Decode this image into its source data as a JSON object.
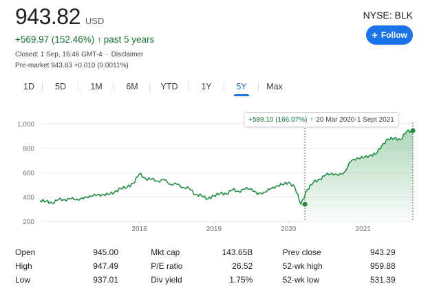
{
  "quote": {
    "price": "943.82",
    "currency": "USD",
    "change": "+569.97 (152.46%)",
    "change_arrow": "↑",
    "period": "past 5 years",
    "closed_prefix": "Closed:",
    "closed_time": "1 Sep, 16:46 GMT-4",
    "disclaimer": "Disclaimer",
    "premarket": "Pre-market 943.83 +0.010 (0.0011%)",
    "exchange": "NYSE: BLK"
  },
  "follow_button": {
    "plus": "+",
    "label": "Follow"
  },
  "tabs": [
    {
      "label": "1D"
    },
    {
      "label": "5D"
    },
    {
      "label": "1M"
    },
    {
      "label": "6M"
    },
    {
      "label": "YTD"
    },
    {
      "label": "1Y"
    },
    {
      "label": "5Y",
      "active": true
    },
    {
      "label": "Max"
    }
  ],
  "tooltip": {
    "change": "+589.10 (166.07%)",
    "arrow": "↑",
    "range": "20 Mar 2020-1 Sept 2021"
  },
  "colors": {
    "accent": "#1a73e8",
    "positive": "#137333",
    "line": "#1e8e3e"
  },
  "chart_data": {
    "type": "line",
    "title": "",
    "xlabel": "",
    "ylabel": "",
    "ylim": [
      200,
      1000
    ],
    "yticks": [
      "200",
      "400",
      "600",
      "800",
      "1,000"
    ],
    "xticks": [
      "2018",
      "2019",
      "2020",
      "2021"
    ],
    "x_range": [
      "2016-09",
      "2021-09"
    ],
    "grid": "horizontal",
    "highlight_start": "2020-03-20",
    "highlight_end": "2021-09-01",
    "series": [
      {
        "values": [
          {
            "x": "2016-09",
            "y": 370
          },
          {
            "x": "2016-10",
            "y": 365
          },
          {
            "x": "2016-11",
            "y": 350
          },
          {
            "x": "2016-12",
            "y": 380
          },
          {
            "x": "2017-01",
            "y": 378
          },
          {
            "x": "2017-02",
            "y": 385
          },
          {
            "x": "2017-03",
            "y": 382
          },
          {
            "x": "2017-04",
            "y": 385
          },
          {
            "x": "2017-05",
            "y": 410
          },
          {
            "x": "2017-06",
            "y": 412
          },
          {
            "x": "2017-07",
            "y": 420
          },
          {
            "x": "2017-08",
            "y": 420
          },
          {
            "x": "2017-09",
            "y": 440
          },
          {
            "x": "2017-10",
            "y": 470
          },
          {
            "x": "2017-11",
            "y": 480
          },
          {
            "x": "2017-12",
            "y": 510
          },
          {
            "x": "2018-01",
            "y": 590
          },
          {
            "x": "2018-02",
            "y": 550
          },
          {
            "x": "2018-03",
            "y": 545
          },
          {
            "x": "2018-04",
            "y": 530
          },
          {
            "x": "2018-05",
            "y": 540
          },
          {
            "x": "2018-06",
            "y": 505
          },
          {
            "x": "2018-07",
            "y": 505
          },
          {
            "x": "2018-08",
            "y": 480
          },
          {
            "x": "2018-09",
            "y": 470
          },
          {
            "x": "2018-10",
            "y": 420
          },
          {
            "x": "2018-11",
            "y": 410
          },
          {
            "x": "2018-12",
            "y": 385
          },
          {
            "x": "2019-01",
            "y": 410
          },
          {
            "x": "2019-02",
            "y": 430
          },
          {
            "x": "2019-03",
            "y": 425
          },
          {
            "x": "2019-04",
            "y": 460
          },
          {
            "x": "2019-05",
            "y": 445
          },
          {
            "x": "2019-06",
            "y": 465
          },
          {
            "x": "2019-07",
            "y": 470
          },
          {
            "x": "2019-08",
            "y": 420
          },
          {
            "x": "2019-09",
            "y": 440
          },
          {
            "x": "2019-10",
            "y": 460
          },
          {
            "x": "2019-11",
            "y": 490
          },
          {
            "x": "2019-12",
            "y": 500
          },
          {
            "x": "2020-01",
            "y": 520
          },
          {
            "x": "2020-02",
            "y": 480
          },
          {
            "x": "2020-03",
            "y": 340
          },
          {
            "x": "2020-04",
            "y": 460
          },
          {
            "x": "2020-05",
            "y": 520
          },
          {
            "x": "2020-06",
            "y": 545
          },
          {
            "x": "2020-07",
            "y": 580
          },
          {
            "x": "2020-08",
            "y": 595
          },
          {
            "x": "2020-09",
            "y": 575
          },
          {
            "x": "2020-10",
            "y": 605
          },
          {
            "x": "2020-11",
            "y": 690
          },
          {
            "x": "2020-12",
            "y": 720
          },
          {
            "x": "2021-01",
            "y": 720
          },
          {
            "x": "2021-02",
            "y": 740
          },
          {
            "x": "2021-03",
            "y": 750
          },
          {
            "x": "2021-04",
            "y": 820
          },
          {
            "x": "2021-05",
            "y": 875
          },
          {
            "x": "2021-06",
            "y": 880
          },
          {
            "x": "2021-07",
            "y": 870
          },
          {
            "x": "2021-08",
            "y": 935
          },
          {
            "x": "2021-09",
            "y": 943.82
          }
        ]
      }
    ]
  },
  "stats": [
    [
      {
        "label": "Open",
        "value": "945.00"
      },
      {
        "label": "Mkt cap",
        "value": "143.65B"
      },
      {
        "label": "Prev close",
        "value": "943.29"
      }
    ],
    [
      {
        "label": "High",
        "value": "947.49"
      },
      {
        "label": "P/E ratio",
        "value": "26.52"
      },
      {
        "label": "52-wk high",
        "value": "959.88"
      }
    ],
    [
      {
        "label": "Low",
        "value": "937.01"
      },
      {
        "label": "Div yield",
        "value": "1.75%"
      },
      {
        "label": "52-wk low",
        "value": "531.39"
      }
    ]
  ]
}
